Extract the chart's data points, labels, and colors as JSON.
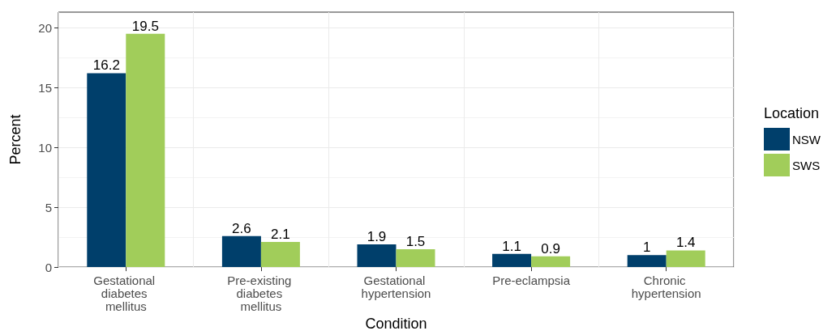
{
  "chart_data": {
    "type": "bar",
    "xlabel": "Condition",
    "ylabel": "Percent",
    "legend_title": "Location",
    "categories": [
      "Gestational diabetes mellitus",
      "Pre-existing diabetes mellitus",
      "Gestational hypertension",
      "Pre-eclampsia",
      "Chronic hypertension"
    ],
    "series": [
      {
        "name": "NSW",
        "color": "#003f6b",
        "values": [
          16.2,
          2.6,
          1.9,
          1.1,
          1
        ]
      },
      {
        "name": "SWS",
        "color": "#a1cd5a",
        "values": [
          19.5,
          2.1,
          1.5,
          0.9,
          1.4
        ]
      }
    ],
    "ylim": [
      0,
      21.3
    ],
    "yticks": [
      0,
      5,
      10,
      15,
      20
    ],
    "grid": true,
    "legend": "right",
    "data_labels": true
  }
}
